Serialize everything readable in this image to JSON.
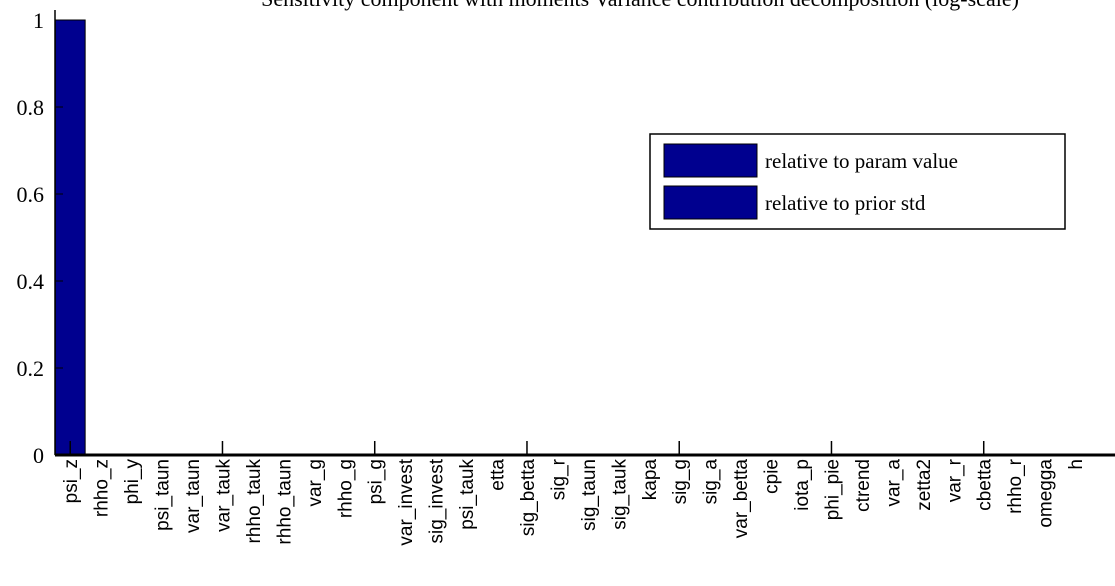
{
  "chart_data": {
    "type": "bar",
    "title": "Sensitivity component with moments Variance contribution decomposition (log-scale)",
    "categories": [
      "psi_z",
      "rhho_z",
      "phi_y",
      "psi_taun",
      "var_taun",
      "var_tauk",
      "rhho_tauk",
      "rhho_taun",
      "var_g",
      "rhho_g",
      "psi_g",
      "var_invest",
      "sig_invest",
      "psi_tauk",
      "etta",
      "sig_betta",
      "sig_r",
      "sig_taun",
      "sig_tauk",
      "kapa",
      "sig_g",
      "sig_a",
      "var_betta",
      "cpie",
      "iota_p",
      "phi_pie",
      "ctrend",
      "var_a",
      "zetta2",
      "var_r",
      "cbetta",
      "rhho_r",
      "omegga",
      "h"
    ],
    "series": [
      {
        "name": "relative to param value",
        "color": "#00008f",
        "values": [
          1,
          0,
          0,
          0,
          0,
          0,
          0,
          0,
          0,
          0,
          0,
          0,
          0,
          0,
          0,
          0,
          0,
          0,
          0,
          0,
          0,
          0,
          0,
          0,
          0,
          0,
          0,
          0,
          0,
          0,
          0,
          0,
          0,
          0
        ]
      },
      {
        "name": "relative to prior std",
        "color": "#00008f",
        "values": [
          1,
          0,
          0,
          0,
          0,
          0,
          0,
          0,
          0,
          0,
          0,
          0,
          0,
          0,
          0,
          0,
          0,
          0,
          0,
          0,
          0,
          0,
          0,
          0,
          0,
          0,
          0,
          0,
          0,
          0,
          0,
          0,
          0,
          0
        ]
      }
    ],
    "yticks": [
      "0",
      "0.2",
      "0.4",
      "0.6",
      "0.8",
      "1"
    ],
    "ylim": [
      0,
      1
    ],
    "legend_position": "right",
    "grid": false
  }
}
